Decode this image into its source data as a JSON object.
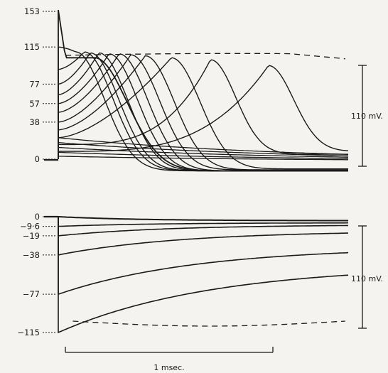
{
  "chart_data": [
    {
      "type": "line",
      "panel": "upper",
      "x_unit": "msec",
      "y_ticks": [
        "153",
        "115",
        "77",
        "57",
        "38",
        "0"
      ],
      "y_tick_values": [
        153,
        115,
        77,
        57,
        38,
        0
      ],
      "ylim": [
        -5,
        158
      ],
      "xlim": [
        0,
        2.0
      ],
      "reference_dashed_level_mV": 110,
      "scale_bar_label": "110 mV.",
      "stimulus_levels_mV": [
        153,
        115,
        92,
        77,
        66,
        57,
        48,
        38,
        30,
        22,
        15,
        8
      ],
      "peak_times_msec": [
        0.08,
        0.12,
        0.18,
        0.22,
        0.28,
        0.35,
        0.42,
        0.5,
        0.6,
        0.78,
        1.05,
        1.45
      ],
      "peak_values_mV": [
        153,
        110,
        110,
        109,
        109,
        108,
        108,
        107,
        106,
        104,
        102,
        96
      ],
      "late_values_mV": [
        -12,
        -12,
        -12,
        -12,
        -12,
        -12,
        -12,
        -11,
        -11,
        -10,
        5,
        8
      ]
    },
    {
      "type": "line",
      "panel": "lower",
      "x_unit": "msec",
      "y_ticks": [
        "0",
        "9·6",
        "19",
        "38",
        "77",
        "115"
      ],
      "y_tick_values": [
        0,
        -9.6,
        -19,
        -38,
        -77,
        -115
      ],
      "ylim": [
        -120,
        5
      ],
      "xlim": [
        0,
        2.0
      ],
      "reference_dashed_level_mV": -110,
      "scale_bar_label": "110 mV.",
      "stimulus_levels_mV": [
        0,
        -9.6,
        -19,
        -38,
        -77,
        -115
      ],
      "final_values_mV": [
        -4,
        -6,
        -8,
        -14,
        -30,
        -48
      ]
    }
  ],
  "time_scale_label": "1 msec.",
  "colors": {
    "ink": "#1a1a1a",
    "paper": "#f4f3ef"
  }
}
